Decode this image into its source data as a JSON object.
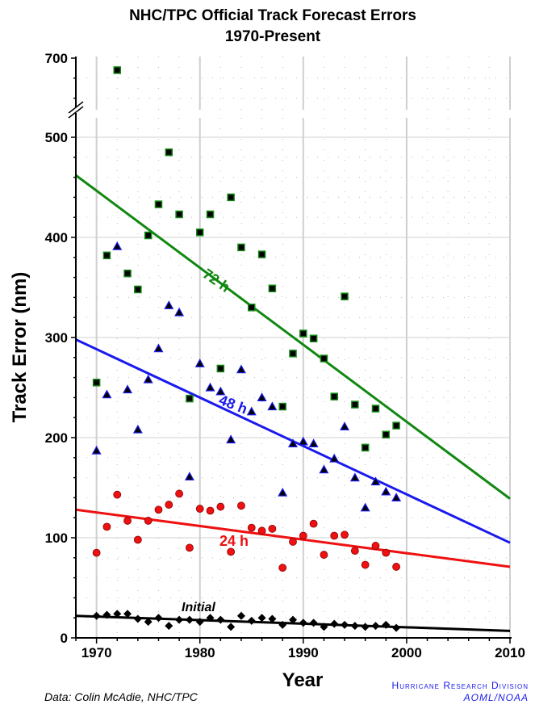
{
  "chart_data": {
    "type": "scatter",
    "title": [
      "NHC/TPC Official Track Forecast Errors",
      "1970-Present"
    ],
    "xlabel": "Year",
    "ylabel": "Track Error (nm)",
    "xlim": [
      1968,
      2010
    ],
    "ylim": [
      0,
      700
    ],
    "axis_break": [
      520,
      645
    ],
    "x_ticks": [
      "1970",
      "1980",
      "1990",
      "2000",
      "2010"
    ],
    "y_ticks": [
      "0",
      "100",
      "200",
      "300",
      "400",
      "500",
      "700"
    ],
    "grid": true,
    "years": [
      1970,
      1971,
      1972,
      1973,
      1974,
      1975,
      1976,
      1977,
      1978,
      1979,
      1980,
      1981,
      1982,
      1983,
      1984,
      1985,
      1986,
      1987,
      1988,
      1989,
      1990,
      1991,
      1992,
      1993,
      1994,
      1995,
      1996,
      1997,
      1998,
      1999
    ],
    "series": [
      {
        "name": "72 h",
        "color": "#118811",
        "marker": "square",
        "values": [
          255,
          382,
          688,
          364,
          348,
          402,
          433,
          485,
          423,
          239,
          405,
          423,
          269,
          440,
          390,
          330,
          383,
          349,
          231,
          284,
          304,
          299,
          279,
          241,
          341,
          233,
          190,
          229,
          203,
          212
        ],
        "trend": [
          462,
          139
        ]
      },
      {
        "name": "48 h",
        "color": "#1a1aee",
        "marker": "triangle",
        "values": [
          187,
          243,
          391,
          248,
          208,
          258,
          289,
          332,
          325,
          161,
          274,
          250,
          246,
          198,
          268,
          226,
          240,
          231,
          145,
          194,
          196,
          194,
          168,
          179,
          211,
          160,
          130,
          156,
          146,
          140
        ],
        "trend": [
          298,
          95
        ]
      },
      {
        "name": "24 h",
        "color": "#ee1111",
        "marker": "circle",
        "values": [
          85,
          111,
          143,
          117,
          98,
          117,
          128,
          133,
          144,
          90,
          129,
          127,
          131,
          86,
          132,
          110,
          107,
          109,
          70,
          96,
          102,
          114,
          83,
          102,
          103,
          87,
          73,
          92,
          85,
          71
        ],
        "trend": [
          128,
          71
        ]
      },
      {
        "name": "Initial",
        "color": "#000000",
        "marker": "diamond",
        "values": [
          22,
          23,
          24,
          24,
          19,
          16,
          20,
          12,
          18,
          18,
          16,
          20,
          18,
          11,
          22,
          17,
          20,
          19,
          13,
          18,
          15,
          15,
          11,
          14,
          13,
          12,
          11,
          12,
          13,
          10
        ],
        "trend": [
          22,
          7
        ]
      }
    ]
  },
  "credits": {
    "data_source": "Data: Colin McAdie, NHC/TPC",
    "org_line1": "Hurricane Research Division",
    "org_line2": "AOML/NOAA"
  }
}
